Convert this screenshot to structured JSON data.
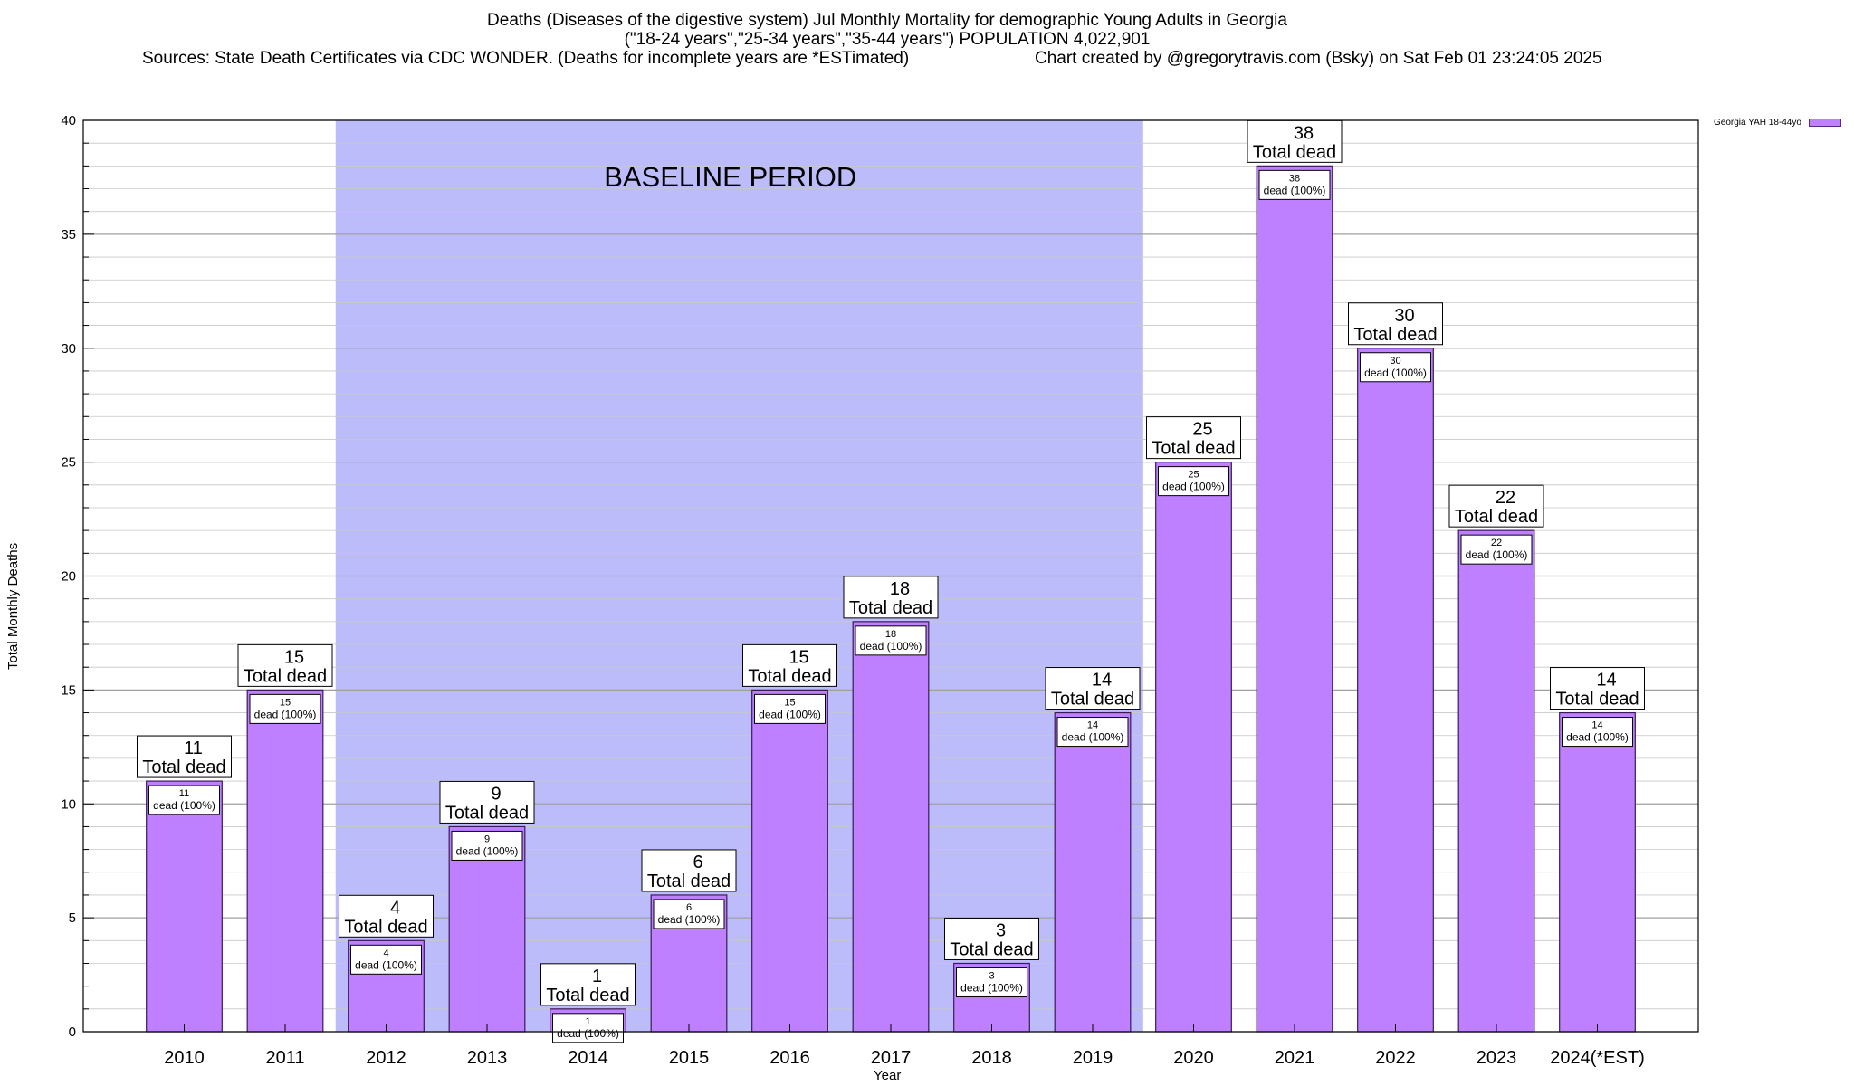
{
  "title": {
    "line1": "Deaths (Diseases of the digestive system) Jul Monthly Mortality for demographic Young Adults in Georgia",
    "line2": "(\"18-24 years\",\"25-34 years\",\"35-44 years\") POPULATION 4,022,901",
    "sources": "Sources: State Death Certificates via CDC WONDER. (Deaths for incomplete years are *ESTimated)",
    "credit": "Chart created by @gregorytravis.com (Bsky) on Sat Feb 01 23:24:05 2025"
  },
  "colors": {
    "bar_fill": "#bf80ff",
    "bar_stroke": "#3a1a5a",
    "baseline_fill": "#bcbcfa",
    "grid": "#c8c8c8"
  },
  "chart_data": {
    "type": "bar",
    "title": "Deaths (Diseases of the digestive system) Jul Monthly Mortality for demographic Young Adults in Georgia",
    "xlabel": "Year",
    "ylabel": "Total Monthly Deaths",
    "ylim": [
      0,
      40
    ],
    "yticks": [
      0,
      5,
      10,
      15,
      20,
      25,
      30,
      35,
      40
    ],
    "grid": true,
    "legend_position": "top-right",
    "categories": [
      "2010",
      "2011",
      "2012",
      "2013",
      "2014",
      "2015",
      "2016",
      "2017",
      "2018",
      "2019",
      "2020",
      "2021",
      "2022",
      "2023",
      "2024(*EST)"
    ],
    "series": [
      {
        "name": "Georgia YAH 18-44yo",
        "values": [
          11,
          15,
          4,
          9,
          1,
          6,
          15,
          18,
          3,
          14,
          25,
          38,
          30,
          22,
          14
        ]
      }
    ],
    "annotation_total_suffix": "Total dead",
    "annotation_inner_suffix": "dead (100%)",
    "baseline_region": {
      "label": "BASELINE PERIOD",
      "from_category": "2012",
      "to_category": "2019"
    }
  }
}
